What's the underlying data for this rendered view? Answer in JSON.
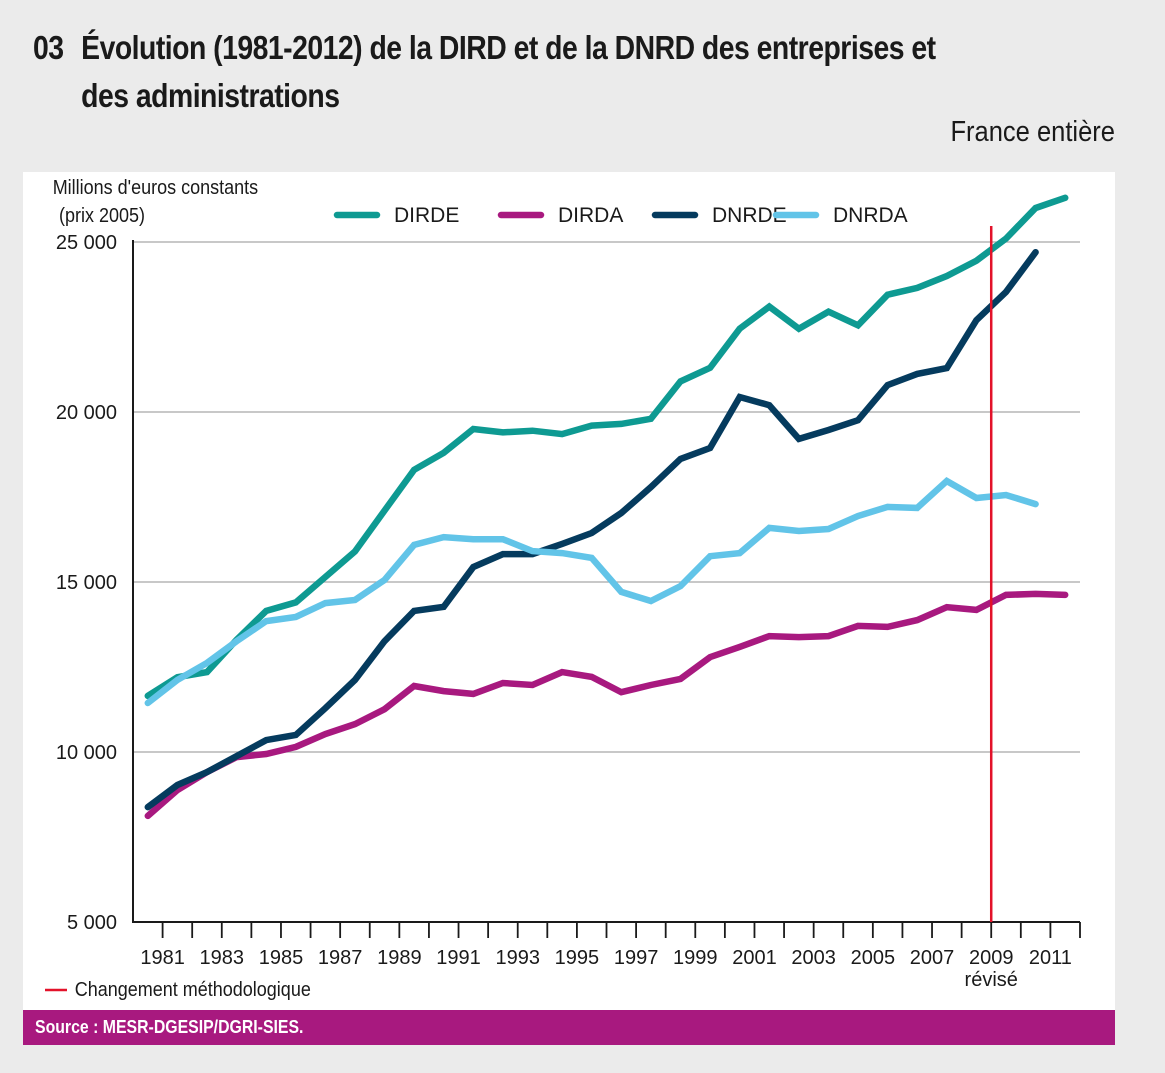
{
  "header": {
    "number": "03",
    "title_line1": "Évolution (1981-2012) de la DIRD et de la DNRD des entreprises et",
    "title_line2": "des administrations",
    "subtitle": "France entière"
  },
  "footer": {
    "source": "Source : MESR-DGESIP/DGRI-SIES."
  },
  "chart_data": {
    "type": "line",
    "title": "Évolution (1981-2012) de la DIRD et de la DNRD des entreprises et des administrations",
    "subtitle": "France entière",
    "ylabel_line1": "Millions d'euros constants",
    "ylabel_line2": "(prix 2005)",
    "xlabel": "",
    "ylim": [
      5000,
      25000
    ],
    "y_ticks": [
      5000,
      10000,
      15000,
      20000,
      25000
    ],
    "y_tick_labels": [
      "5 000",
      "10 000",
      "15 000",
      "20 000",
      "25 000"
    ],
    "grid": "horizontal",
    "legend_position": "top",
    "x": [
      1981,
      1982,
      1983,
      1984,
      1985,
      1986,
      1987,
      1988,
      1989,
      1990,
      1991,
      1992,
      1993,
      1994,
      1995,
      1996,
      1997,
      1998,
      1999,
      2000,
      2001,
      2002,
      2003,
      2004,
      2005,
      2006,
      2007,
      2008,
      2009,
      2010,
      2011,
      2012
    ],
    "x_tick_labels": [
      "1981",
      "1983",
      "1985",
      "1987",
      "1989",
      "1991",
      "1993",
      "1995",
      "1997",
      "1999",
      "2001",
      "2003",
      "2005",
      "2007",
      "2009",
      "2011"
    ],
    "x_annotation": {
      "year": 2009,
      "label": "révisé"
    },
    "vertical_marker": {
      "year": 2009,
      "color": "#e3122a",
      "legend_label": "Changement méthodologique"
    },
    "series": [
      {
        "name": "DIRDE",
        "color": "#0e9a92",
        "values": [
          11650,
          12200,
          12350,
          13300,
          14150,
          14400,
          15150,
          15900,
          17100,
          18300,
          18800,
          19500,
          19400,
          19450,
          19350,
          19600,
          19650,
          19800,
          20900,
          21300,
          22450,
          23100,
          22450,
          22950,
          22550,
          23450,
          23650,
          24000,
          24450,
          25100,
          26000,
          26300
        ]
      },
      {
        "name": "DIRDA",
        "color": "#a8197f",
        "values": [
          8120,
          8880,
          9410,
          9850,
          9940,
          10150,
          10530,
          10820,
          11260,
          11940,
          11790,
          11710,
          12030,
          11970,
          12350,
          12210,
          11760,
          11970,
          12150,
          12790,
          13090,
          13410,
          13380,
          13410,
          13710,
          13680,
          13880,
          14260,
          14180,
          14620,
          14650,
          14620
        ]
      },
      {
        "name": "DNRDE",
        "color": "#053b5e",
        "values": [
          8380,
          9030,
          9410,
          9880,
          10350,
          10500,
          11290,
          12120,
          13260,
          14150,
          14270,
          15440,
          15820,
          15820,
          16120,
          16440,
          17030,
          17790,
          18620,
          18940,
          20440,
          20200,
          19210,
          19470,
          19760,
          20790,
          21120,
          21290,
          22700,
          23530,
          24700,
          null
        ]
      },
      {
        "name": "DNRDA",
        "color": "#62c4e8",
        "values": [
          11440,
          12120,
          12620,
          13260,
          13850,
          13970,
          14380,
          14470,
          15060,
          16090,
          16320,
          16260,
          16260,
          15910,
          15850,
          15710,
          14710,
          14440,
          14880,
          15760,
          15850,
          16590,
          16500,
          16560,
          16940,
          17210,
          17180,
          17970,
          17470,
          17560,
          17290,
          null
        ]
      }
    ]
  }
}
